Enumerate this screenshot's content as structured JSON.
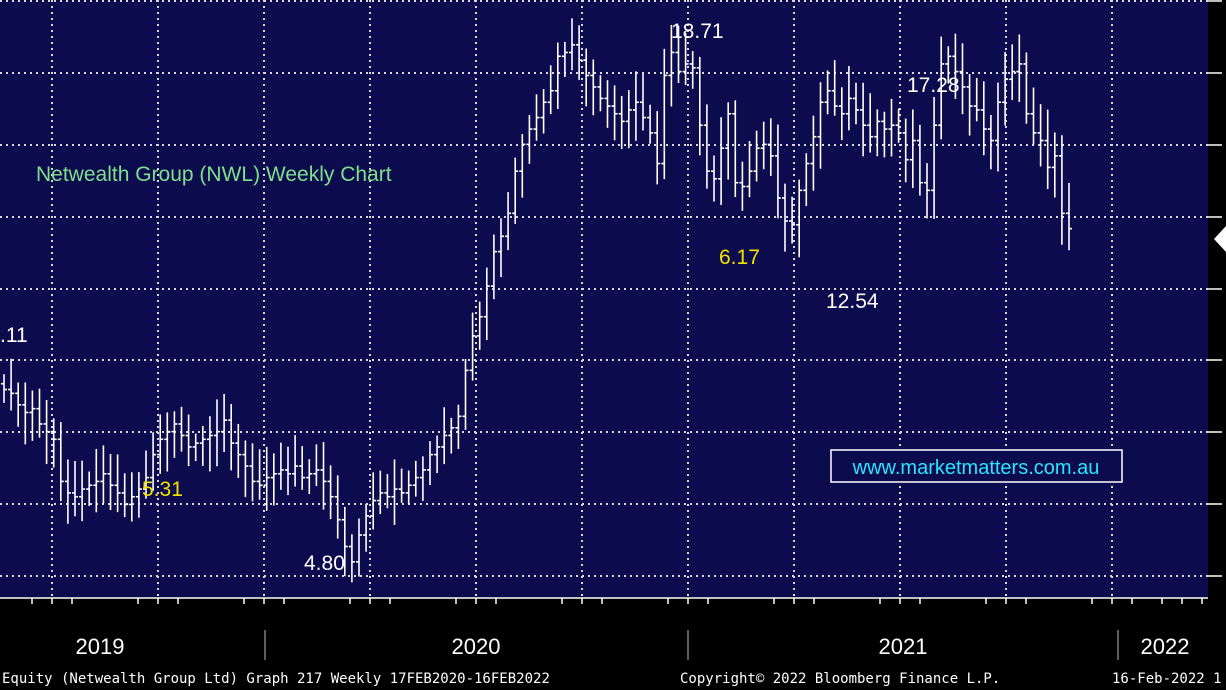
{
  "chart_data": {
    "type": "ohlc",
    "title": "Netwealth Group (NWL) Weekly Chart",
    "watermark": "www.marketmatters.com.au",
    "period": "weekly",
    "x_years": [
      "2019",
      "2020",
      "2021",
      "2022"
    ],
    "annotations": [
      {
        "text": ".11",
        "color": "white"
      },
      {
        "text": "5.31",
        "color": "yellow"
      },
      {
        "text": "4.80",
        "color": "white"
      },
      {
        "text": "18.71",
        "color": "white"
      },
      {
        "text": "6.17",
        "color": "yellow"
      },
      {
        "text": "12.54",
        "color": "white"
      },
      {
        "text": "17.28",
        "color": "white"
      }
    ],
    "prices": [
      9.6,
      9.5,
      9.2,
      9.0,
      9.1,
      8.7,
      8.5,
      8.3,
      7.2,
      6.9,
      6.8,
      7.0,
      7.1,
      7.2,
      7.4,
      7.1,
      6.9,
      6.6,
      6.8,
      7.0,
      7.3,
      7.9,
      8.3,
      8.5,
      8.7,
      8.4,
      8.1,
      8.2,
      8.3,
      8.4,
      8.5,
      8.8,
      8.2,
      7.9,
      7.6,
      7.2,
      7.1,
      7.3,
      7.4,
      7.5,
      7.4,
      7.6,
      7.3,
      7.4,
      7.5,
      7.2,
      6.8,
      6.2,
      5.5,
      5.1,
      5.8,
      6.3,
      6.7,
      6.9,
      6.8,
      7.0,
      6.9,
      7.1,
      7.3,
      7.5,
      7.9,
      8.1,
      8.4,
      8.6,
      8.9,
      10.1,
      11.0,
      11.5,
      12.3,
      13.2,
      13.6,
      14.2,
      15.3,
      16.0,
      16.4,
      16.7,
      17.1,
      17.4,
      18.3,
      18.4,
      18.6,
      18.2,
      17.8,
      17.5,
      17.2,
      17.0,
      16.8,
      16.6,
      16.9,
      17.1,
      16.7,
      16.3,
      15.5,
      17.8,
      18.4,
      17.9,
      18.1,
      18.0,
      16.5,
      15.3,
      15.1,
      15.9,
      16.8,
      15.0,
      14.9,
      15.3,
      15.9,
      16.0,
      15.7,
      14.6,
      14.0,
      13.9,
      14.8,
      15.5,
      16.2,
      17.1,
      17.4,
      17.0,
      16.8,
      17.2,
      16.9,
      16.5,
      16.2,
      16.6,
      16.4,
      16.5,
      16.3,
      15.6,
      16.1,
      15.0,
      14.8,
      16.5,
      18.1,
      18.3,
      17.9,
      17.5,
      17.0,
      16.9,
      16.4,
      16.1,
      17.1,
      17.7,
      17.9,
      18.1,
      16.8,
      16.3,
      16.1,
      15.4,
      15.7,
      14.2,
      13.8
    ]
  },
  "footer": {
    "left": "Equity (Netwealth Group Ltd) Graph 217  Weekly 17FEB2020-16FEB2022",
    "center": "Copyright© 2022 Bloomberg Finance L.P.",
    "right": "16-Feb-2022 1"
  },
  "colors": {
    "plot_bg": "#0b0b4e",
    "grid": "#d9d9d9",
    "bars": "#ffffff",
    "title": "#7fe08a",
    "highlight": "#f2e200",
    "link": "#29e5ff"
  }
}
